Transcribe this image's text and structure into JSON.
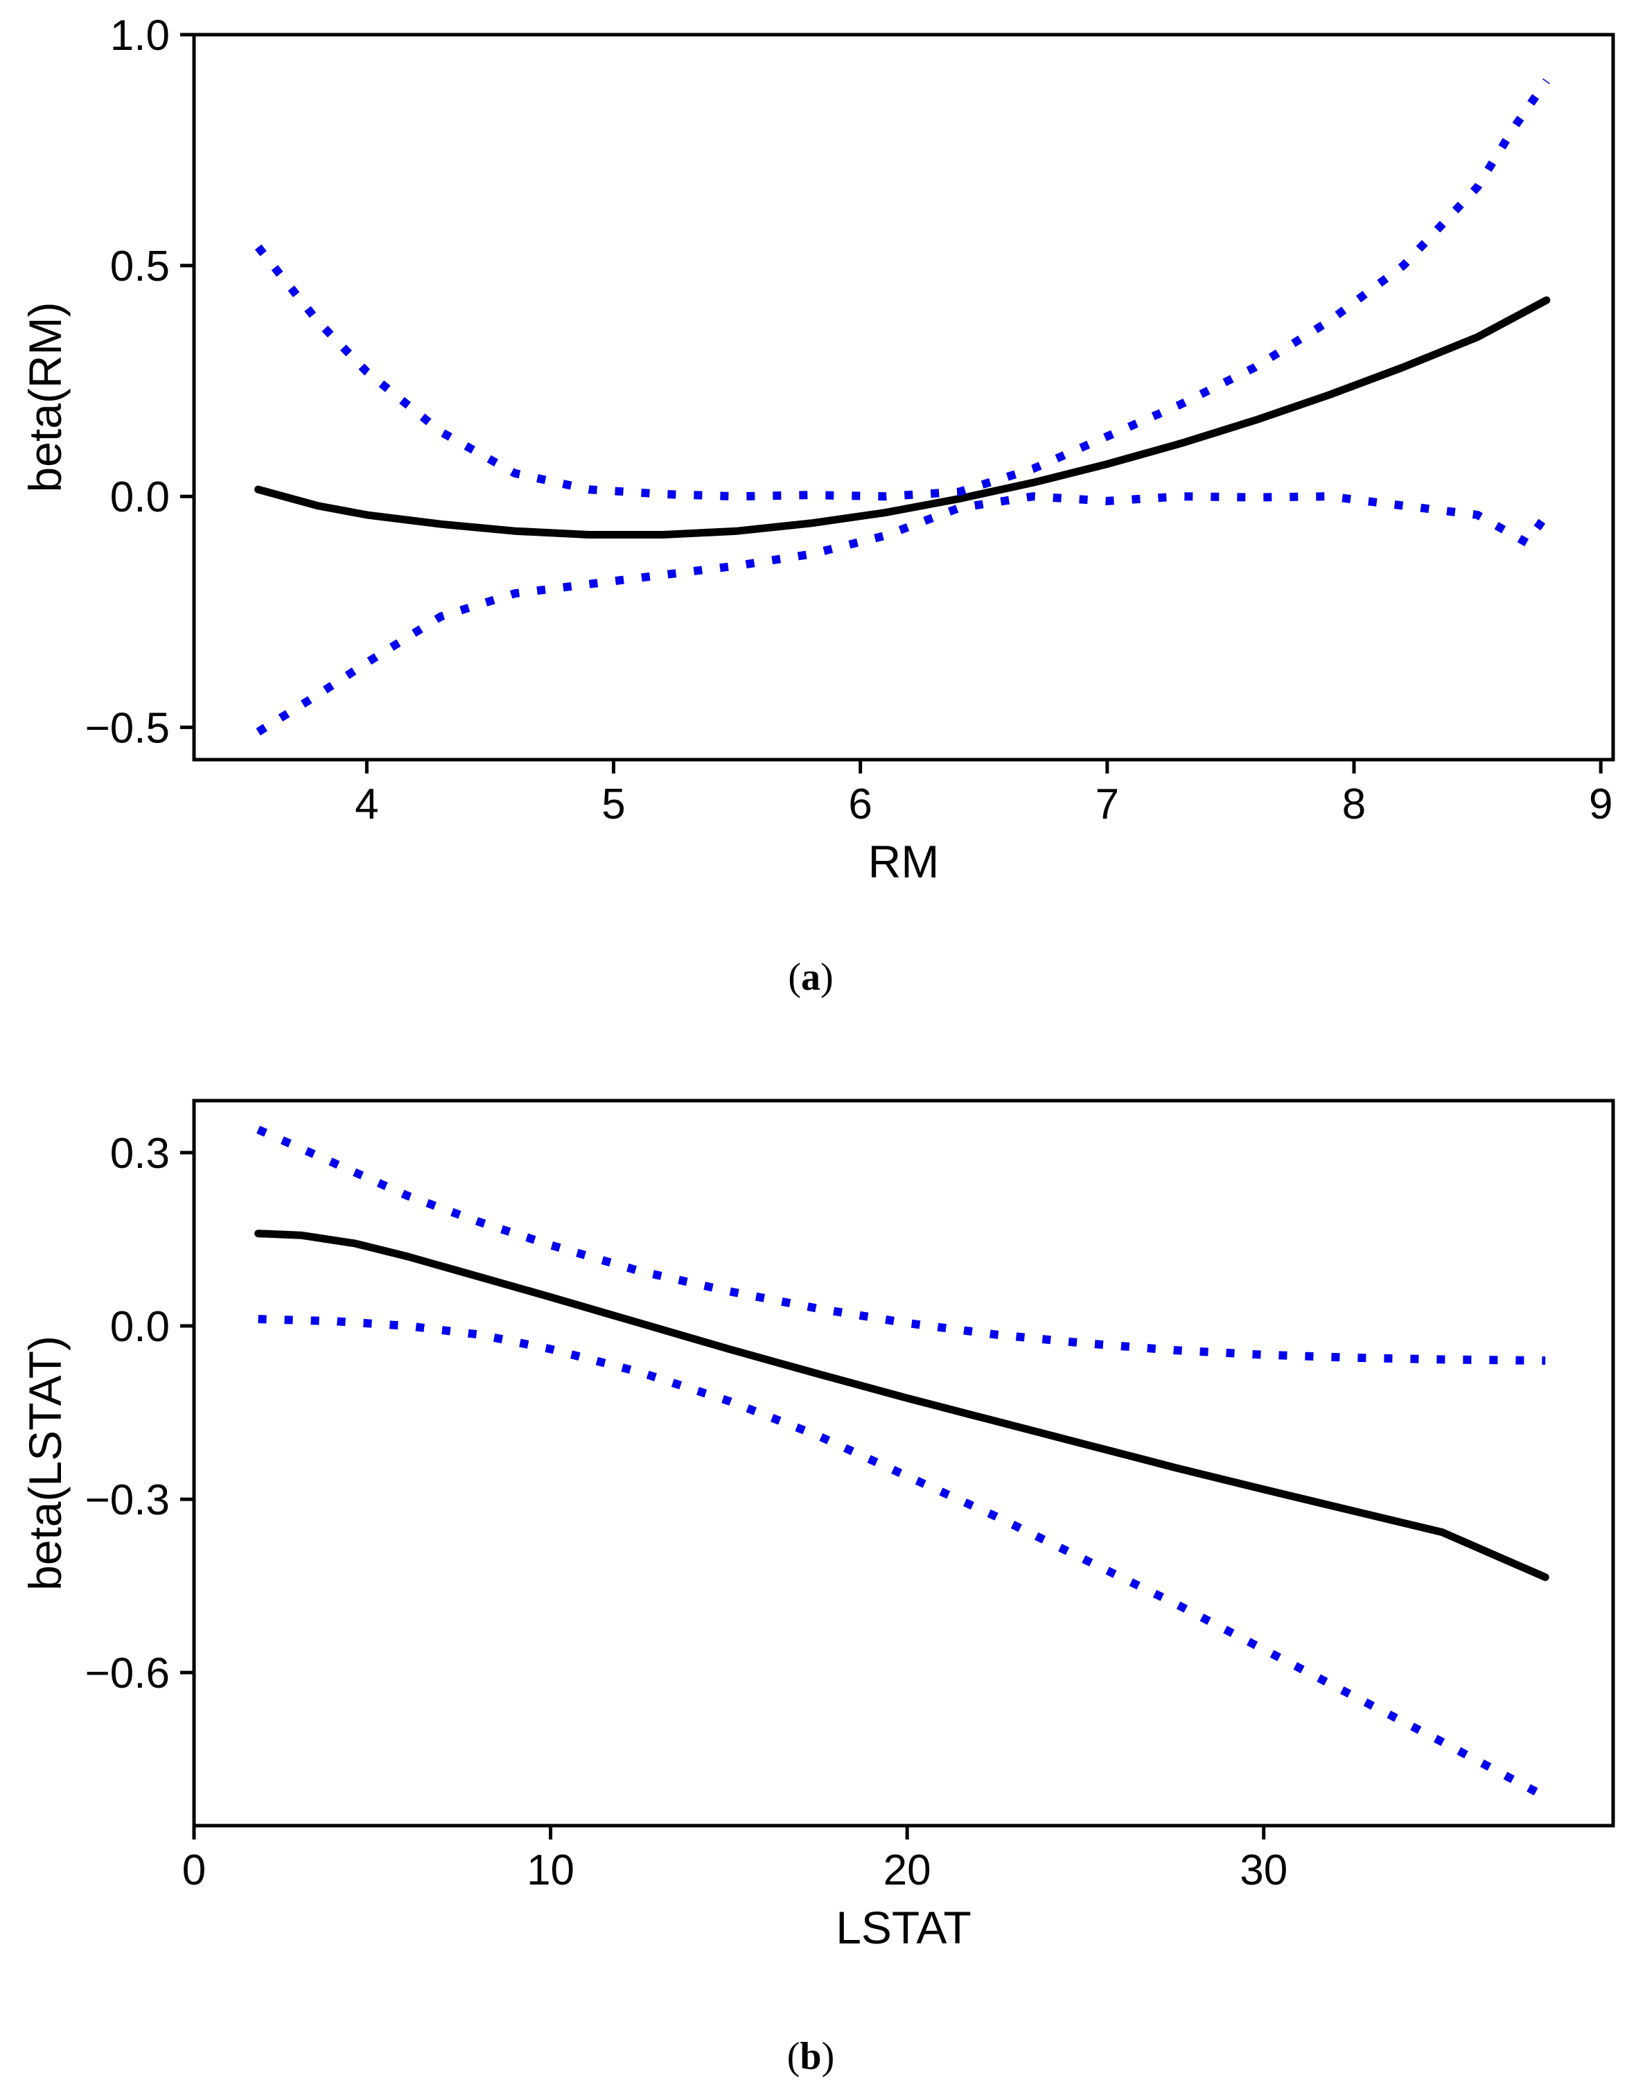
{
  "colors": {
    "fit": "#000000",
    "band": "#0000ee",
    "axes": "#000000"
  },
  "chart_data": [
    {
      "type": "line",
      "caption_open": "(",
      "caption_letter": "a",
      "caption_close": ")",
      "xlabel": "RM",
      "ylabel": "beta(RM)",
      "xlim": [
        3.3,
        9.05
      ],
      "ylim": [
        -0.57,
        1.0
      ],
      "xticks": [
        4,
        5,
        6,
        7,
        8,
        9
      ],
      "xtick_labels": [
        "4",
        "5",
        "6",
        "7",
        "8",
        "9"
      ],
      "yticks": [
        -0.5,
        0.0,
        0.5,
        1.0
      ],
      "ytick_labels": [
        "−0.5",
        "0.0",
        "0.5",
        "1.0"
      ],
      "series": [
        {
          "name": "estimate",
          "style": "solid",
          "x": [
            3.56,
            3.8,
            4.0,
            4.3,
            4.6,
            4.9,
            5.2,
            5.5,
            5.8,
            6.1,
            6.4,
            6.7,
            7.0,
            7.3,
            7.6,
            7.9,
            8.2,
            8.5,
            8.78
          ],
          "y": [
            0.015,
            -0.02,
            -0.04,
            -0.06,
            -0.075,
            -0.083,
            -0.083,
            -0.075,
            -0.058,
            -0.035,
            -0.005,
            0.03,
            0.07,
            0.115,
            0.165,
            0.22,
            0.28,
            0.345,
            0.425
          ]
        },
        {
          "name": "upper band",
          "style": "dotted",
          "x": [
            3.56,
            3.8,
            4.0,
            4.3,
            4.6,
            4.9,
            5.2,
            5.5,
            5.8,
            6.1,
            6.4,
            6.7,
            7.0,
            7.3,
            7.6,
            7.9,
            8.2,
            8.5,
            8.65,
            8.78
          ],
          "y": [
            0.54,
            0.38,
            0.27,
            0.14,
            0.05,
            0.015,
            0.005,
            0.0,
            0.003,
            0.0,
            0.01,
            0.06,
            0.13,
            0.2,
            0.28,
            0.38,
            0.5,
            0.67,
            0.8,
            0.9
          ]
        },
        {
          "name": "lower band",
          "style": "dotted",
          "x": [
            3.56,
            3.8,
            4.0,
            4.3,
            4.6,
            4.9,
            5.2,
            5.5,
            5.8,
            6.1,
            6.4,
            6.7,
            7.0,
            7.3,
            7.6,
            7.9,
            8.2,
            8.5,
            8.7,
            8.78
          ],
          "y": [
            -0.51,
            -0.43,
            -0.36,
            -0.26,
            -0.21,
            -0.19,
            -0.17,
            -0.15,
            -0.125,
            -0.085,
            -0.025,
            0.0,
            -0.01,
            0.0,
            -0.002,
            0.0,
            -0.02,
            -0.04,
            -0.1,
            -0.04
          ]
        }
      ]
    },
    {
      "type": "line",
      "caption_open": "(",
      "caption_letter": "b",
      "caption_close": ")",
      "xlabel": "LSTAT",
      "ylabel": "beta(LSTAT)",
      "xlim": [
        0,
        39.8
      ],
      "ylim": [
        -0.865,
        0.39
      ],
      "xticks": [
        0,
        10,
        20,
        30
      ],
      "xtick_labels": [
        "0",
        "10",
        "20",
        "30"
      ],
      "yticks": [
        -0.6,
        -0.3,
        0.0,
        0.3
      ],
      "ytick_labels": [
        "−0.6",
        "−0.3",
        "0.0",
        "0.3"
      ],
      "series": [
        {
          "name": "estimate",
          "style": "solid",
          "x": [
            1.8,
            3.0,
            4.5,
            6.0,
            8.0,
            10.0,
            12.5,
            15.0,
            17.5,
            20.0,
            22.5,
            25.0,
            27.5,
            30.0,
            32.5,
            35.0,
            37.9
          ],
          "y": [
            0.16,
            0.157,
            0.143,
            0.12,
            0.085,
            0.05,
            0.005,
            -0.04,
            -0.083,
            -0.125,
            -0.165,
            -0.205,
            -0.245,
            -0.283,
            -0.32,
            -0.357,
            -0.435
          ]
        },
        {
          "name": "upper band",
          "style": "dotted",
          "x": [
            1.8,
            4.0,
            6.0,
            8.0,
            10.0,
            12.5,
            15.0,
            17.5,
            20.0,
            22.5,
            25.0,
            27.5,
            30.0,
            32.5,
            35.0,
            37.9
          ],
          "y": [
            0.34,
            0.28,
            0.225,
            0.18,
            0.14,
            0.095,
            0.06,
            0.03,
            0.005,
            -0.015,
            -0.03,
            -0.042,
            -0.05,
            -0.055,
            -0.058,
            -0.06
          ]
        },
        {
          "name": "lower band",
          "style": "dotted",
          "x": [
            1.8,
            4.0,
            6.0,
            8.0,
            10.0,
            12.5,
            15.0,
            17.5,
            20.0,
            22.5,
            25.0,
            27.5,
            30.0,
            32.5,
            35.0,
            37.9
          ],
          "y": [
            0.012,
            0.008,
            0.0,
            -0.015,
            -0.04,
            -0.08,
            -0.13,
            -0.19,
            -0.26,
            -0.33,
            -0.405,
            -0.48,
            -0.56,
            -0.64,
            -0.72,
            -0.815
          ]
        }
      ]
    }
  ]
}
